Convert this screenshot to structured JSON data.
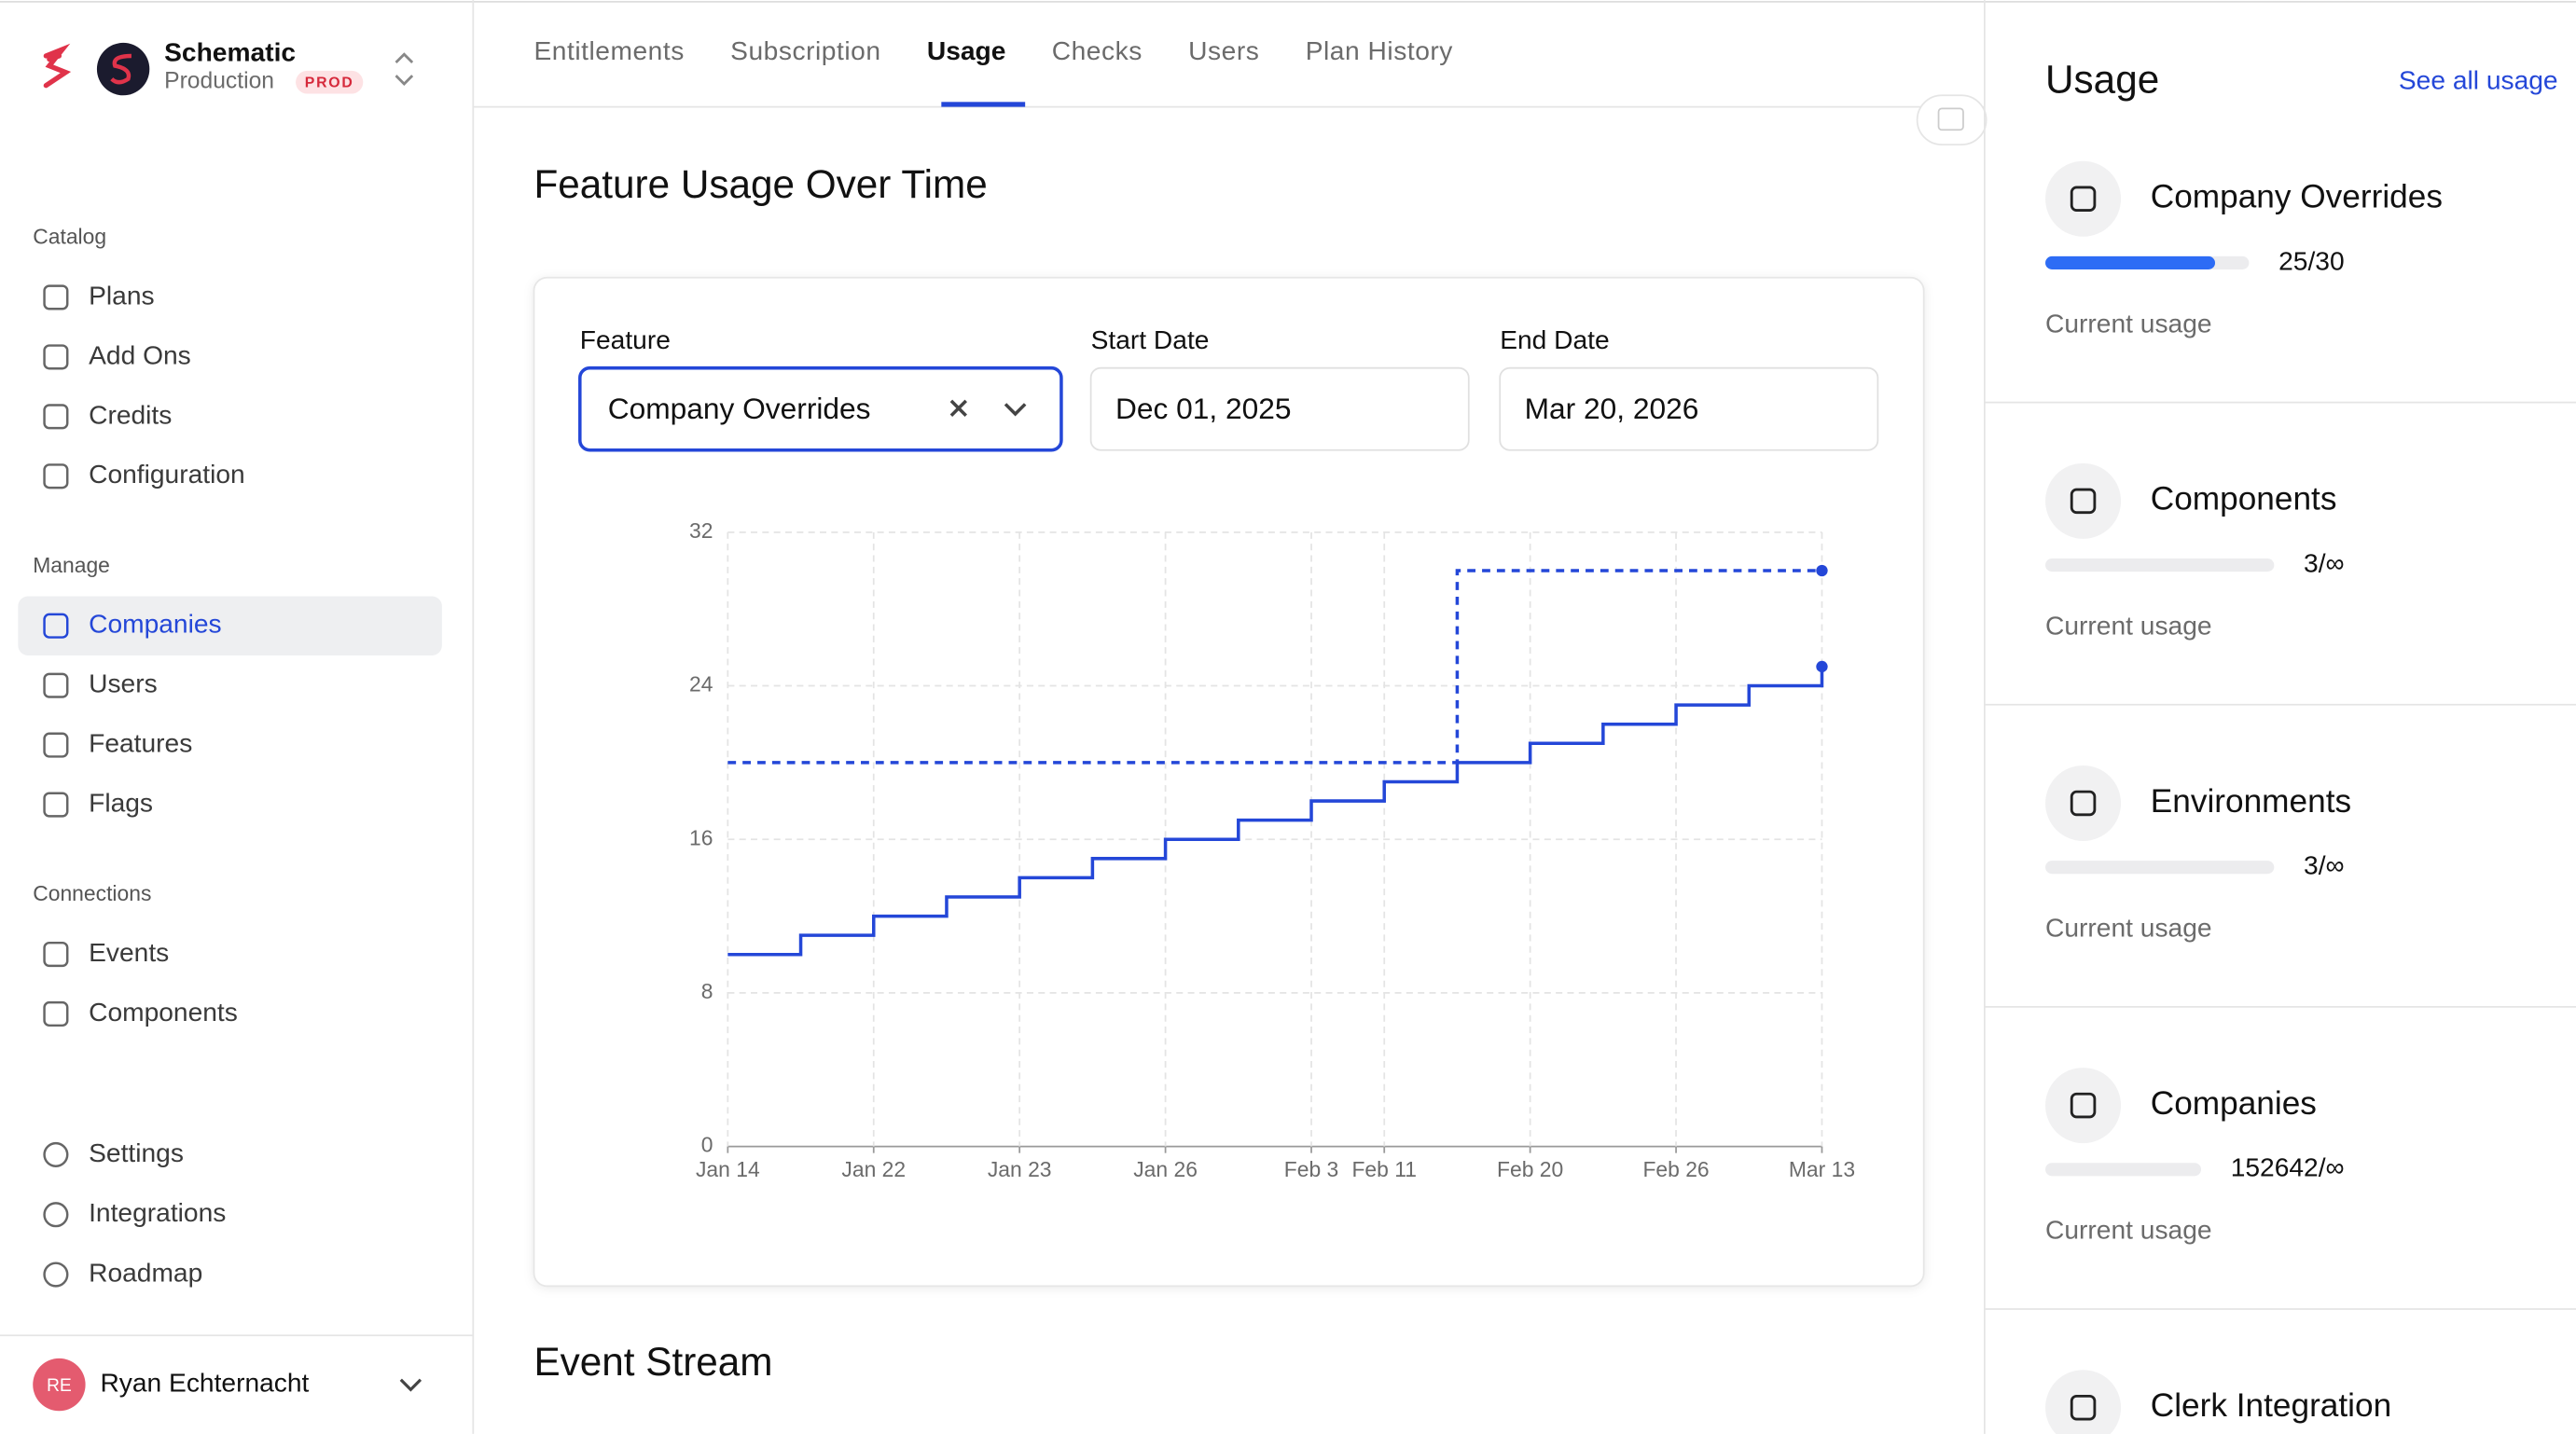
{
  "sidebar": {
    "org_name": "Schematic",
    "environment": "Production",
    "badge": "PROD",
    "sections": [
      {
        "title": "Catalog",
        "items": [
          "Plans",
          "Add Ons",
          "Credits",
          "Configuration"
        ]
      },
      {
        "title": "Manage",
        "items": [
          "Companies",
          "Users",
          "Features",
          "Flags"
        ]
      },
      {
        "title": "Connections",
        "items": [
          "Events",
          "Components"
        ]
      }
    ],
    "bottom_items": [
      "Settings",
      "Integrations",
      "Roadmap"
    ],
    "user": {
      "initials": "RE",
      "name": "Ryan Echternacht"
    }
  },
  "tabs": [
    "Entitlements",
    "Subscription",
    "Usage",
    "Checks",
    "Users",
    "Plan History"
  ],
  "main": {
    "title": "Feature Usage Over Time",
    "filters": {
      "feature_label": "Feature",
      "feature_value": "Company Overrides",
      "start_label": "Start Date",
      "start_value": "Dec 01, 2025",
      "end_label": "End Date",
      "end_value": "Mar 20, 2026"
    },
    "next_section": "Event Stream"
  },
  "chart_data": {
    "type": "line",
    "step": "after",
    "categories": [
      "Jan 14",
      null,
      "Jan 22",
      null,
      "Jan 23",
      null,
      "Jan 26",
      null,
      "Feb 3",
      "Feb 11",
      null,
      "Feb 20",
      null,
      "Feb 26",
      null,
      "Mar 13"
    ],
    "series": [
      {
        "color": "#2447d8",
        "dashed": false,
        "end_marker": true,
        "values": [
          10,
          11,
          12,
          13,
          14,
          15,
          16,
          17,
          18,
          19,
          20,
          21,
          22,
          23,
          24,
          25
        ]
      },
      {
        "color": "#2447d8",
        "dashed": true,
        "end_marker": true,
        "values": [
          20,
          20,
          20,
          20,
          20,
          20,
          20,
          20,
          20,
          20,
          30,
          30,
          30,
          30,
          30,
          30
        ]
      }
    ],
    "ylim": [
      0,
      32
    ],
    "yticks": [
      0,
      8,
      16,
      24,
      32
    ],
    "grid": true
  },
  "usage_panel": {
    "title": "Usage",
    "link": "See all usage",
    "items": [
      {
        "name": "Company Overrides",
        "used": 25,
        "limit": 30,
        "label": "25/30",
        "caption": "Current usage"
      },
      {
        "name": "Components",
        "used": 3,
        "limit": null,
        "label": "3/∞",
        "caption": "Current usage"
      },
      {
        "name": "Environments",
        "used": 3,
        "limit": null,
        "label": "3/∞",
        "caption": "Current usage"
      },
      {
        "name": "Companies",
        "used": 152642,
        "limit": null,
        "label": "152642/∞",
        "caption": "Current usage"
      },
      {
        "name": "Clerk Integration"
      }
    ]
  }
}
